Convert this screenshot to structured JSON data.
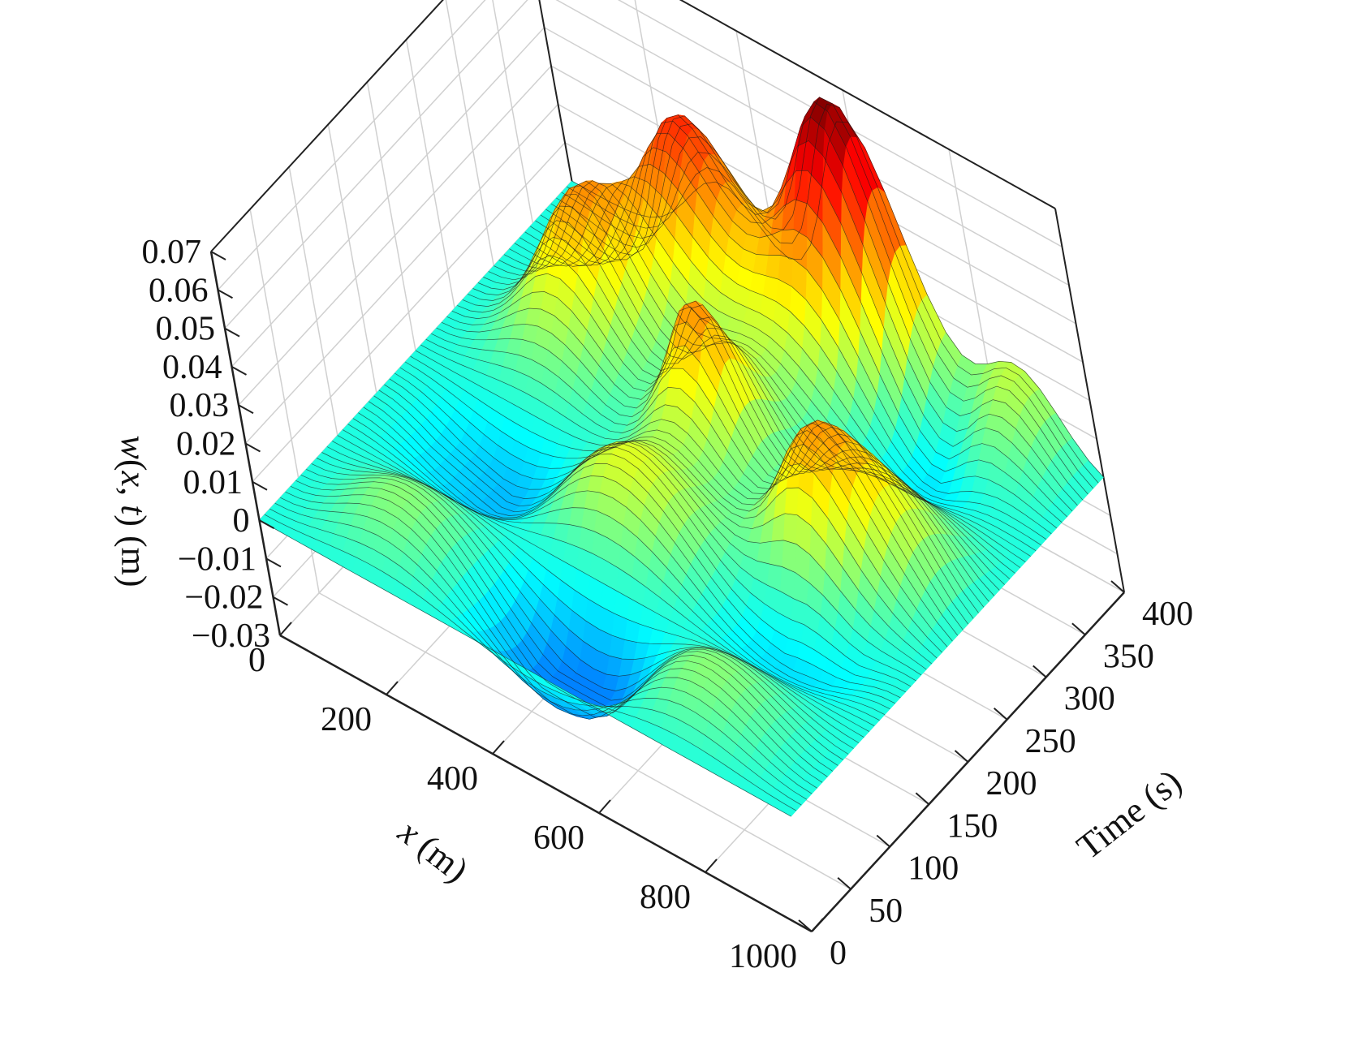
{
  "chart_data": {
    "type": "surface",
    "title": "",
    "x_axis": {
      "label_var": "x",
      "label_unit": " (m)",
      "range": [
        0,
        1000
      ],
      "ticks": [
        "0",
        "200",
        "400",
        "600",
        "800",
        "1000"
      ],
      "tick_values": [
        0,
        200,
        400,
        600,
        800,
        1000
      ]
    },
    "t_axis": {
      "label": "Time (s)",
      "range": [
        0,
        400
      ],
      "ticks": [
        "0",
        "50",
        "100",
        "150",
        "200",
        "250",
        "300",
        "350",
        "400"
      ],
      "tick_values": [
        0,
        50,
        100,
        150,
        200,
        250,
        300,
        350,
        400
      ]
    },
    "z_axis": {
      "label_w": "w",
      "label_open": "(",
      "label_x": "x",
      "label_comma": ", ",
      "label_t": "t",
      "label_close": ") (m)",
      "range": [
        -0.03,
        0.07
      ],
      "ticks": [
        "0.07",
        "0.06",
        "0.05",
        "0.04",
        "0.03",
        "0.02",
        "0.01",
        "0",
        "−0.01",
        "−0.02",
        "−0.03"
      ],
      "tick_values": [
        0.07,
        0.06,
        0.05,
        0.04,
        0.03,
        0.02,
        0.01,
        0,
        -0.01,
        -0.02,
        -0.03
      ]
    },
    "grid": true,
    "colormap": "jet",
    "peak_amplitude": 0.07,
    "trough_amplitude": -0.03,
    "peaks": [
      {
        "x": 200,
        "t": 300,
        "w": 0.057
      },
      {
        "x": 300,
        "t": 360,
        "w": 0.062
      },
      {
        "x": 600,
        "t": 390,
        "w": 0.068
      },
      {
        "x": 900,
        "t": 380,
        "w": 0.06
      },
      {
        "x": 500,
        "t": 250,
        "w": 0.058
      },
      {
        "x": 800,
        "t": 200,
        "w": 0.055
      },
      {
        "x": 950,
        "t": 230,
        "w": 0.045
      }
    ]
  },
  "colors": {
    "background": "#ffffff",
    "axis_line": "#222222",
    "grid_line": "#d0d0d0",
    "wire": "#1a1a1a"
  }
}
